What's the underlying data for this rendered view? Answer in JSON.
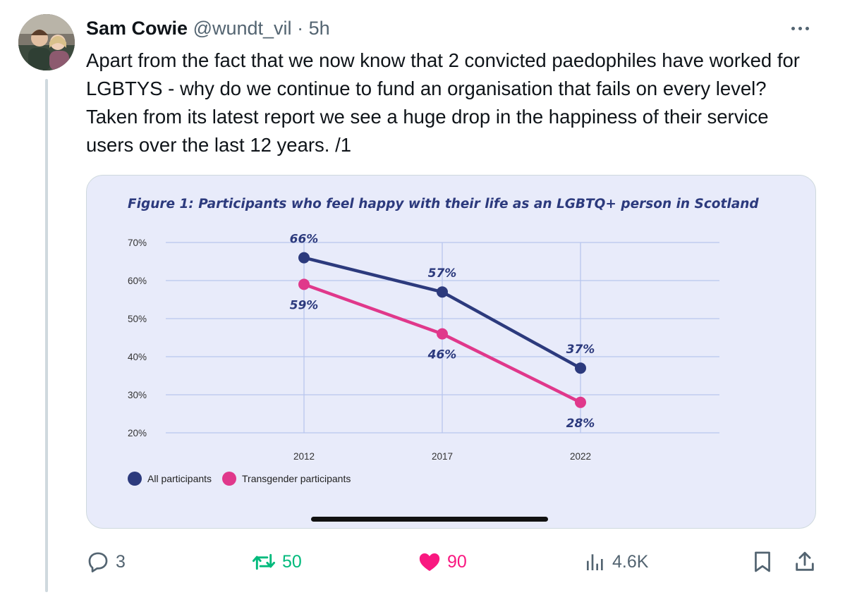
{
  "author": {
    "name": "Sam Cowie",
    "handle": "@wundt_vil",
    "separator": "·",
    "time": "5h"
  },
  "tweet": {
    "text": "Apart from the fact that we now know that 2 convicted paedophiles have worked for LGBTYS - why do we continue to fund an organisation that fails on every level? Taken from its latest report we see a huge drop in the happiness of their service users over the last 12 years. /1"
  },
  "actions": {
    "reply_count": "3",
    "retweet_count": "50",
    "like_count": "90",
    "view_count": "4.6K"
  },
  "colors": {
    "retweet": "#00ba7c",
    "like": "#f91880",
    "muted": "#536471",
    "series_all": "#2c3a7d",
    "series_trans": "#e0388b",
    "chart_bg": "#e8ebfa"
  },
  "chart_data": {
    "type": "line",
    "title": "Figure 1: Participants who feel happy with their life as an LGBTQ+ person in Scotland",
    "x": [
      "2012",
      "2017",
      "2022"
    ],
    "ylim": [
      20,
      70
    ],
    "yticks": [
      "70%",
      "60%",
      "50%",
      "40%",
      "30%",
      "20%"
    ],
    "ytick_values": [
      70,
      60,
      50,
      40,
      30,
      20
    ],
    "grid": true,
    "legend_position": "bottom-left",
    "series": [
      {
        "name": "All participants",
        "values": [
          66,
          57,
          37
        ],
        "labels": [
          "66%",
          "57%",
          "37%"
        ],
        "color": "#2c3a7d"
      },
      {
        "name": "Transgender participants",
        "values": [
          59,
          46,
          28
        ],
        "labels": [
          "59%",
          "46%",
          "28%"
        ],
        "color": "#e0388b"
      }
    ]
  }
}
